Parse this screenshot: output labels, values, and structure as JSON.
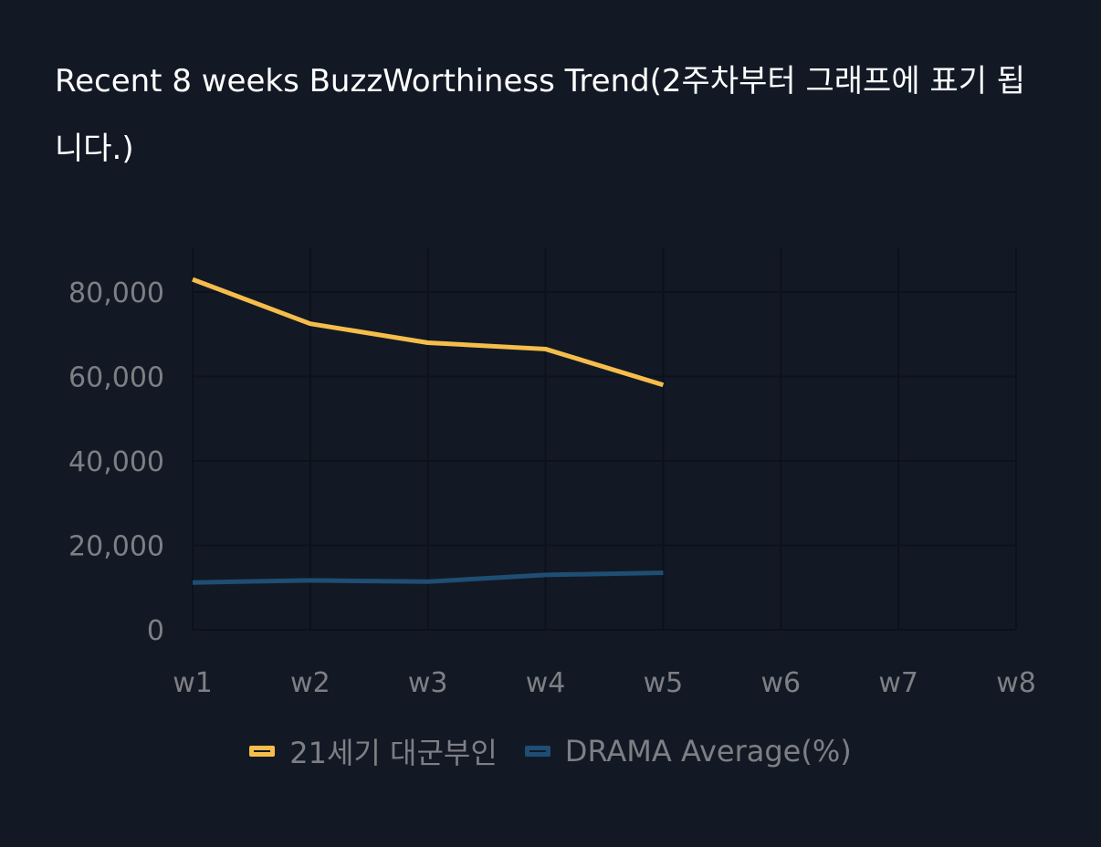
{
  "title": "Recent 8 weeks BuzzWorthiness Trend(2주차부터 그래프에 표기 됩니다.)",
  "chart_data": {
    "type": "line",
    "title": "Recent 8 weeks BuzzWorthiness Trend(2주차부터 그래프에 표기 됩니다.)",
    "xlabel": "",
    "ylabel": "",
    "categories": [
      "w1",
      "w2",
      "w3",
      "w4",
      "w5",
      "w6",
      "w7",
      "w8"
    ],
    "ylim": [
      0,
      80000
    ],
    "yticks": [
      0,
      20000,
      40000,
      60000,
      80000
    ],
    "ytick_labels": [
      "0",
      "20,000",
      "40,000",
      "60,000",
      "80,000"
    ],
    "grid": true,
    "legend_position": "bottom",
    "series": [
      {
        "name": "21세기 대군부인",
        "color": "#f6bd4b",
        "values": [
          83000,
          72500,
          68000,
          66500,
          58000,
          null,
          null,
          null
        ]
      },
      {
        "name": "DRAMA Average(%)",
        "color": "#1e4e73",
        "values": [
          11200,
          11700,
          11400,
          13000,
          13500,
          null,
          null,
          null
        ]
      }
    ]
  }
}
